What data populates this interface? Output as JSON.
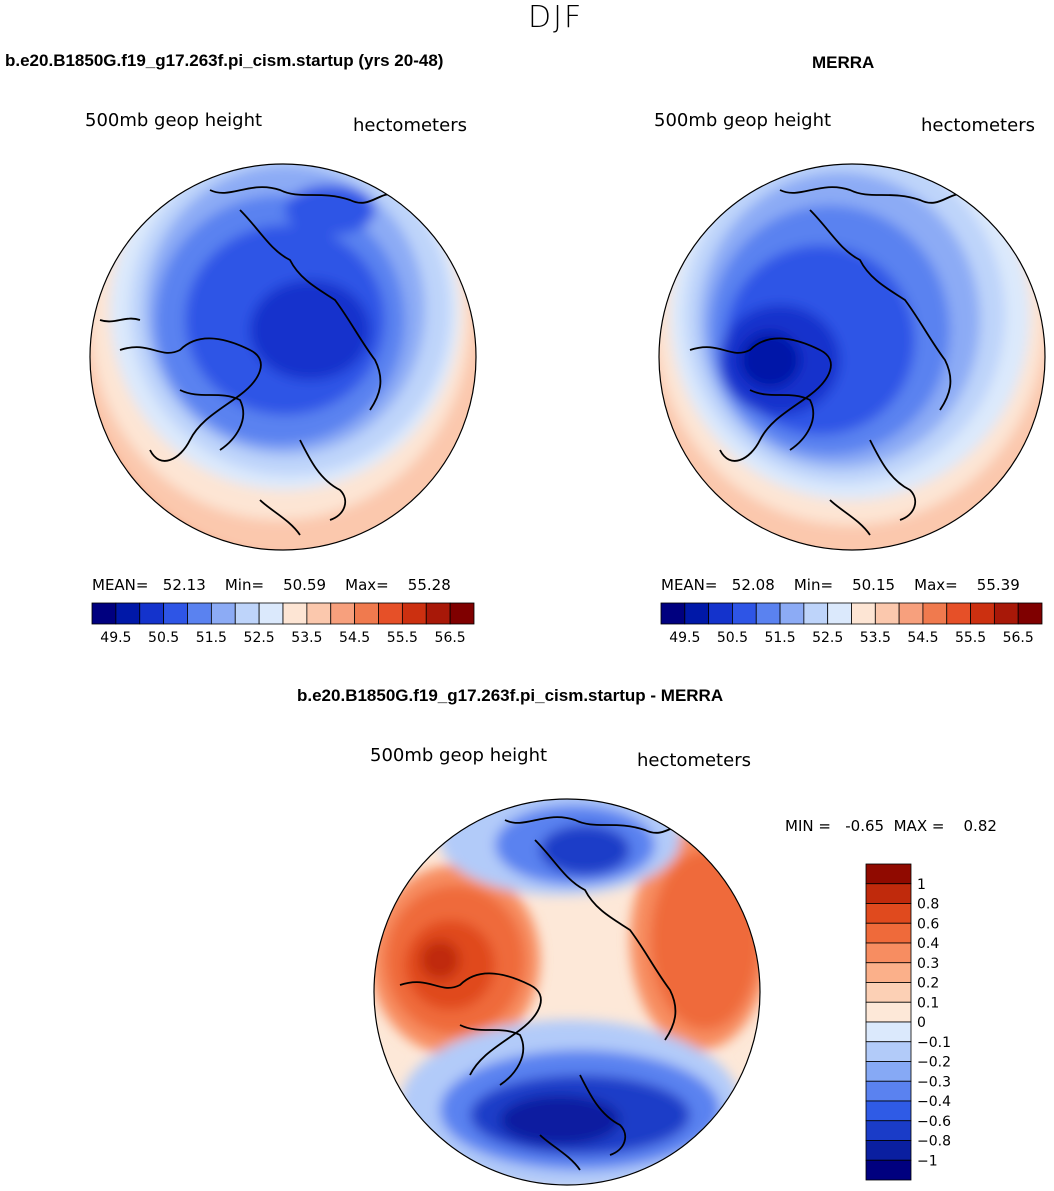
{
  "figure_title": "DJF",
  "panels": {
    "model": {
      "title": "b.e20.B1850G.f19_g17.263f.pi_cism.startup (yrs 20-48)",
      "variable": "500mb geop height",
      "units": "hectometers",
      "stats": {
        "mean_label": "MEAN=",
        "mean": "52.13",
        "min_label": "Min=",
        "min": "50.59",
        "max_label": "Max=",
        "max": "55.28"
      }
    },
    "obs": {
      "title": "MERRA",
      "variable": "500mb geop height",
      "units": "hectometers",
      "stats": {
        "mean_label": "MEAN=",
        "mean": "52.08",
        "min_label": "Min=",
        "min": "50.15",
        "max_label": "Max=",
        "max": "55.39"
      }
    },
    "diff": {
      "title": "b.e20.B1850G.f19_g17.263f.pi_cism.startup - MERRA",
      "variable": "500mb geop height",
      "units": "hectometers",
      "minmax": {
        "min_label": "MIN =",
        "min": "-0.65",
        "max_label": "MAX =",
        "max": "0.82"
      }
    }
  },
  "colors": {
    "abs_scale": [
      "#00007f",
      "#0018a8",
      "#1433cc",
      "#2e55e6",
      "#5a82f0",
      "#8cabf5",
      "#bed4fa",
      "#dbe9fc",
      "#fde5d4",
      "#fbc8ad",
      "#f7a07d",
      "#f07a4e",
      "#e65028",
      "#cc3010",
      "#a81808",
      "#7f0000"
    ],
    "diff_scale": [
      "#00007f",
      "#0a1fa0",
      "#1a3cc8",
      "#2f5be6",
      "#5a82f0",
      "#86a9f5",
      "#b2cbf9",
      "#dbe9fc",
      "#fde8d8",
      "#fcd0b5",
      "#fbb08a",
      "#f78d61",
      "#ef6a3a",
      "#e04a1e",
      "#c02a0c",
      "#900a00"
    ]
  },
  "chart_data": [
    {
      "type": "heatmap",
      "projection": "north polar stereographic",
      "title": "b.e20.B1850G.f19_g17.263f.pi_cism.startup (yrs 20-48)",
      "variable": "500mb geop height",
      "units": "hectometers",
      "mean": 52.13,
      "min": 50.59,
      "max": 55.28,
      "colorbar_ticks": [
        "49.5",
        "50.5",
        "51.5",
        "52.5",
        "53.5",
        "54.5",
        "55.5",
        "56.5"
      ],
      "levels": [
        49.5,
        50,
        50.5,
        51,
        51.5,
        52,
        52.5,
        53,
        53.5,
        54,
        54.5,
        55,
        55.5,
        56,
        56.5
      ]
    },
    {
      "type": "heatmap",
      "projection": "north polar stereographic",
      "title": "MERRA",
      "variable": "500mb geop height",
      "units": "hectometers",
      "mean": 52.08,
      "min": 50.15,
      "max": 55.39,
      "colorbar_ticks": [
        "49.5",
        "50.5",
        "51.5",
        "52.5",
        "53.5",
        "54.5",
        "55.5",
        "56.5"
      ],
      "levels": [
        49.5,
        50,
        50.5,
        51,
        51.5,
        52,
        52.5,
        53,
        53.5,
        54,
        54.5,
        55,
        55.5,
        56,
        56.5
      ]
    },
    {
      "type": "heatmap",
      "projection": "north polar stereographic",
      "title": "b.e20.B1850G.f19_g17.263f.pi_cism.startup - MERRA",
      "variable": "500mb geop height",
      "units": "hectometers",
      "min": -0.65,
      "max": 0.82,
      "colorbar_ticks": [
        "1",
        "0.8",
        "0.6",
        "0.4",
        "0.3",
        "0.2",
        "0.1",
        "0",
        "−0.1",
        "−0.2",
        "−0.3",
        "−0.4",
        "−0.6",
        "−0.8",
        "−1"
      ]
    }
  ]
}
